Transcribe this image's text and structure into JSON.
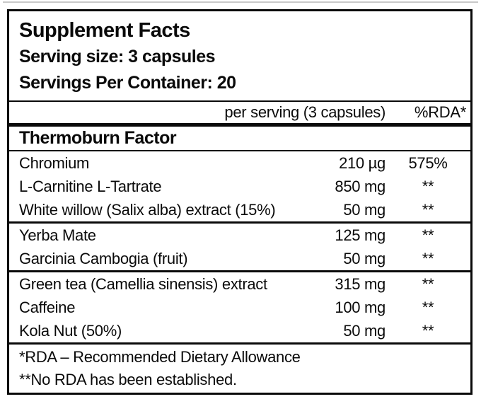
{
  "label": {
    "title": "Supplement Facts",
    "serving_size": "Serving size: 3 capsules",
    "servings_per_container": "Servings Per Container: 20",
    "columns": {
      "per_serving": "per serving (3 capsules)",
      "rda": "%RDA*"
    },
    "section_title": "Thermoburn Factor",
    "groups": [
      {
        "rows": [
          {
            "name": "Chromium",
            "amount": "210 µg",
            "rda": "575%"
          },
          {
            "name": "L-Carnitine L-Tartrate",
            "amount": "850 mg",
            "rda": "**"
          },
          {
            "name": "White willow (Salix alba) extract (15%)",
            "amount": "50 mg",
            "rda": "**"
          }
        ]
      },
      {
        "rows": [
          {
            "name": "Yerba Mate",
            "amount": "125 mg",
            "rda": "**"
          },
          {
            "name": "Garcinia Cambogia (fruit)",
            "amount": "50 mg",
            "rda": "**"
          }
        ]
      },
      {
        "rows": [
          {
            "name": "Green tea (Camellia sinensis) extract",
            "amount": "315 mg",
            "rda": "**"
          },
          {
            "name": "Caffeine",
            "amount": "100 mg",
            "rda": "**"
          },
          {
            "name": "Kola Nut (50%)",
            "amount": "50 mg",
            "rda": "**"
          }
        ]
      }
    ],
    "footnotes": [
      "*RDA – Recommended Dietary Allowance",
      "**No RDA has been established."
    ],
    "colors": {
      "ink": "#0a0a0a",
      "paper": "#ffffff"
    }
  }
}
